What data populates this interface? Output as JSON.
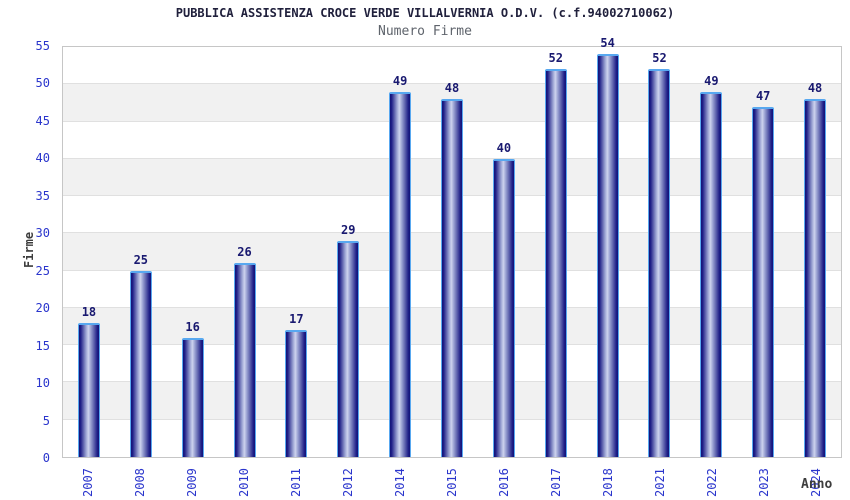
{
  "chart_data": {
    "type": "bar",
    "title": "PUBBLICA ASSISTENZA CROCE VERDE VILLALVERNIA O.D.V. (c.f.94002710062)",
    "subtitle": "Numero Firme",
    "xlabel": "Anno",
    "ylabel": "Firme",
    "categories": [
      "2007",
      "2008",
      "2009",
      "2010",
      "2011",
      "2012",
      "2014",
      "2015",
      "2016",
      "2017",
      "2018",
      "2021",
      "2022",
      "2023",
      "2024"
    ],
    "values": [
      18,
      25,
      16,
      26,
      17,
      29,
      49,
      48,
      40,
      52,
      54,
      52,
      49,
      47,
      48
    ],
    "ylim": [
      0,
      55
    ],
    "yticks": [
      0,
      5,
      10,
      15,
      20,
      25,
      30,
      35,
      40,
      45,
      50,
      55
    ],
    "grid": "horizontal gridlines every 5 with alternating gray/white bands",
    "legend": "none",
    "value_labels": "above each bar"
  },
  "colors": {
    "title_color": "#20203c",
    "subtitle_color": "#5f646c",
    "tick_label_color": "#2a35cc",
    "value_label_color": "#191970",
    "axis_label_color": "#3d3d3d",
    "plot_border": "#c6c6c6",
    "band_color": "#f1f1f1",
    "gridline_color": "#e0e0e0",
    "bar_border": "#58a8f0",
    "bar_dark": "#131378",
    "bar_edge": "#1d1d86",
    "bar_mid": "#9aa2d2",
    "bar_light": "#ced3ee"
  }
}
